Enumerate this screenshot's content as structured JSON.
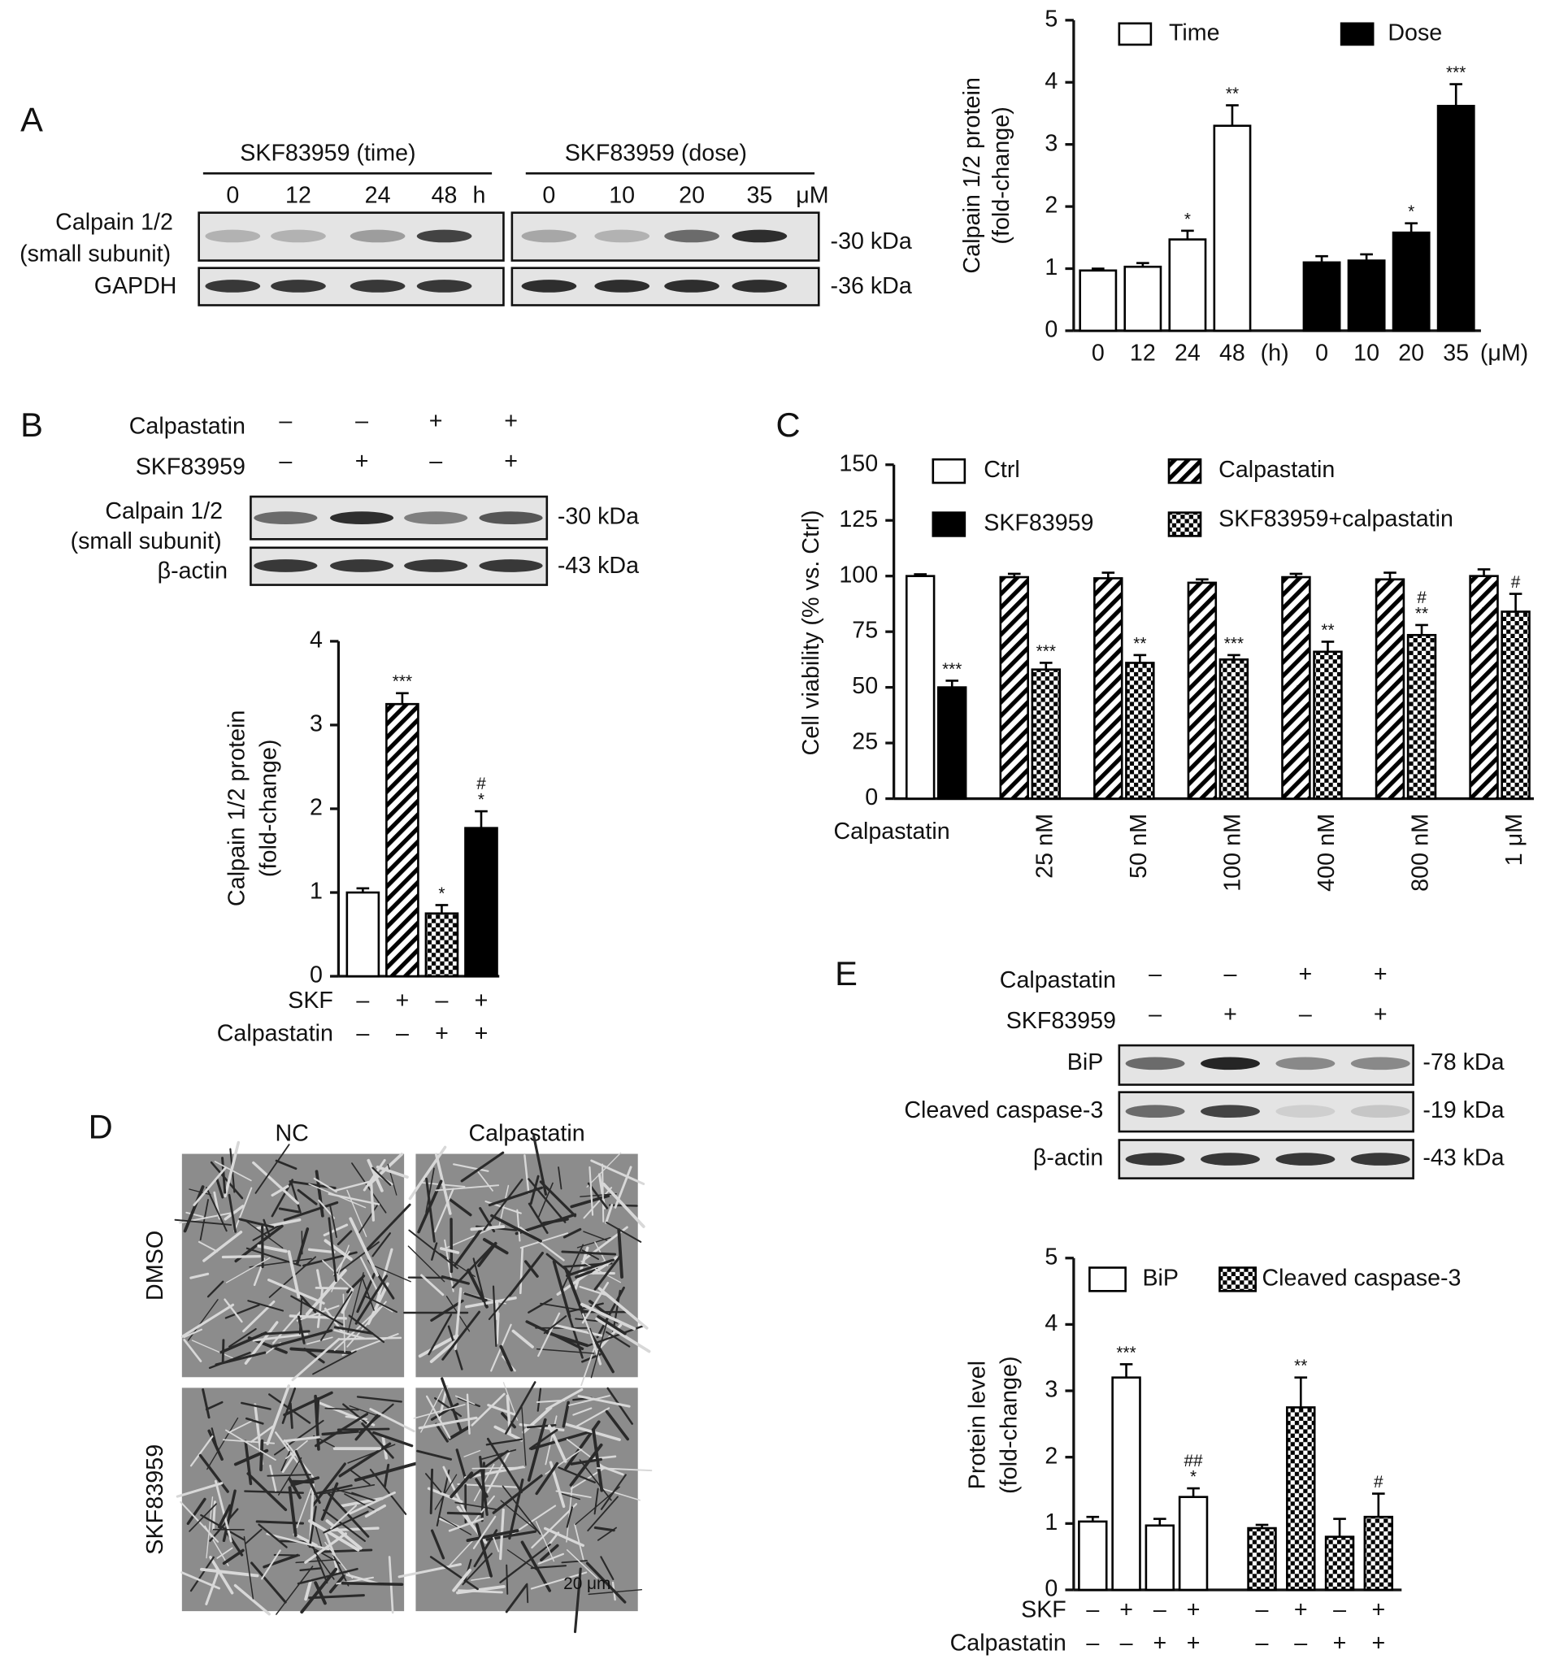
{
  "panels": [
    "A",
    "B",
    "C",
    "D",
    "E"
  ],
  "blots": {
    "A": {
      "headers": [
        "SKF83959 (time)",
        "SKF83959 (dose)"
      ],
      "lanes": [
        "0",
        "12",
        "24",
        "48",
        "h",
        "0",
        "10",
        "20",
        "35",
        "μM"
      ],
      "rows": [
        "Calpain 1/2",
        "(small subunit)",
        "GAPDH"
      ],
      "sizes": [
        "-30 kDa",
        "-36 kDa"
      ]
    },
    "B": {
      "rows": [
        "Calpastatin",
        "SKF83959"
      ],
      "signs": [
        [
          "–",
          "–",
          "+",
          "+"
        ],
        [
          "–",
          "+",
          "–",
          "+"
        ]
      ],
      "bands": [
        "Calpain 1/2",
        "(small subunit)",
        "β-actin"
      ],
      "sizes": [
        "-30 kDa",
        "-43 kDa"
      ]
    },
    "D": {
      "columns": [
        "NC",
        "Calpastatin"
      ],
      "rows": [
        "DMSO",
        "SKF83959"
      ],
      "scale": "20 μm"
    },
    "E": {
      "rows": [
        "Calpastatin",
        "SKF83959"
      ],
      "signs": [
        [
          "–",
          "–",
          "+",
          "+"
        ],
        [
          "–",
          "+",
          "–",
          "+"
        ]
      ],
      "bands": [
        "BiP",
        "Cleaved caspase-3",
        "β-actin"
      ],
      "sizes": [
        "-78 kDa",
        "-19 kDa",
        "-43 kDa"
      ]
    }
  },
  "chart_data": [
    {
      "type": "bar",
      "ylabel": [
        "Calpain 1/2 protein",
        "(fold-change)"
      ],
      "categories": [
        "0",
        "12",
        "24",
        "48",
        "0",
        "10",
        "20",
        "35"
      ],
      "group_units": [
        "(h)",
        "(μM)"
      ],
      "series": [
        {
          "name": "Time",
          "pattern": "open",
          "values": [
            0.97,
            1.03,
            1.47,
            3.3,
            null,
            null,
            null,
            null
          ],
          "errors": [
            0.03,
            0.06,
            0.14,
            0.33,
            null,
            null,
            null,
            null
          ],
          "annotations": [
            null,
            null,
            [
              "*"
            ],
            [
              "**"
            ],
            null,
            null,
            null,
            null
          ]
        },
        {
          "name": "Dose",
          "pattern": "solid",
          "values": [
            null,
            null,
            null,
            null,
            1.1,
            1.13,
            1.58,
            3.62
          ],
          "errors": [
            null,
            null,
            null,
            null,
            0.1,
            0.1,
            0.15,
            0.35
          ],
          "annotations": [
            null,
            null,
            null,
            null,
            null,
            null,
            [
              "*"
            ],
            [
              "***"
            ]
          ]
        }
      ],
      "ylim": [
        0,
        5
      ],
      "yticks": [
        0,
        1,
        2,
        3,
        4,
        5
      ]
    },
    {
      "type": "bar",
      "ylabel": [
        "Calpain 1/2 protein",
        "(fold-change)"
      ],
      "values": [
        1.0,
        3.25,
        0.75,
        1.77
      ],
      "errors": [
        0.05,
        0.13,
        0.1,
        0.2
      ],
      "patterns": [
        "open",
        "hatch",
        "checker",
        "solid"
      ],
      "annotations": [
        null,
        [
          "***"
        ],
        [
          "*"
        ],
        [
          "#",
          "*"
        ]
      ],
      "treatment_rows": [
        {
          "label": "SKF",
          "values": [
            "–",
            "+",
            "–",
            "+"
          ]
        },
        {
          "label": "Calpastatin",
          "values": [
            "–",
            "–",
            "+",
            "+"
          ]
        }
      ],
      "ylim": [
        0,
        4
      ],
      "yticks": [
        0,
        1,
        2,
        3,
        4
      ]
    },
    {
      "type": "bar",
      "ylabel": [
        "Cell viability (% vs. Ctrl)"
      ],
      "xlabel": "Calpastatin",
      "categories": [
        null,
        "25 nM",
        "50 nM",
        "100 nM",
        "400 nM",
        "800 nM",
        "1 μM"
      ],
      "series": [
        {
          "name": "Ctrl",
          "pattern": "open",
          "values": [
            100,
            null,
            null,
            null,
            null,
            null,
            null
          ],
          "errors": [
            0.8,
            null,
            null,
            null,
            null,
            null,
            null
          ],
          "annotations": [
            null,
            null,
            null,
            null,
            null,
            null,
            null
          ]
        },
        {
          "name": "SKF83959",
          "pattern": "solid",
          "values": [
            50,
            null,
            null,
            null,
            null,
            null,
            null
          ],
          "errors": [
            3,
            null,
            null,
            null,
            null,
            null,
            null
          ],
          "annotations": [
            [
              "***"
            ],
            null,
            null,
            null,
            null,
            null,
            null
          ]
        },
        {
          "name": "Calpastatin",
          "pattern": "hatch",
          "values": [
            null,
            99.5,
            99,
            97,
            99.5,
            98.5,
            100
          ],
          "errors": [
            null,
            1.5,
            2.5,
            1.5,
            1.5,
            3,
            3
          ],
          "annotations": [
            null,
            null,
            null,
            null,
            null,
            null,
            null
          ]
        },
        {
          "name": "SKF83959+calpastatin",
          "pattern": "checker",
          "values": [
            null,
            58,
            61,
            62.5,
            66,
            73.5,
            84
          ],
          "errors": [
            null,
            3,
            3.5,
            2,
            4.5,
            4.5,
            8
          ],
          "annotations": [
            null,
            [
              "***"
            ],
            [
              "**"
            ],
            [
              "***"
            ],
            [
              "**"
            ],
            [
              "#",
              "**"
            ],
            [
              "#"
            ]
          ]
        }
      ],
      "ylim": [
        0,
        150
      ],
      "yticks": [
        0,
        25,
        50,
        75,
        100,
        125,
        150
      ]
    },
    {
      "type": "bar",
      "ylabel": [
        "Protein level",
        "(fold-change)"
      ],
      "series": [
        {
          "name": "BiP",
          "pattern": "open",
          "values": [
            1.03,
            3.2,
            0.97,
            1.4
          ],
          "errors": [
            0.07,
            0.2,
            0.1,
            0.13
          ],
          "annotations": [
            null,
            [
              "***"
            ],
            null,
            [
              "##",
              "*"
            ]
          ]
        },
        {
          "name": "Cleaved caspase-3",
          "pattern": "checker",
          "values": [
            0.93,
            2.75,
            0.8,
            1.1
          ],
          "errors": [
            0.05,
            0.45,
            0.27,
            0.35
          ],
          "annotations": [
            null,
            [
              "**"
            ],
            null,
            [
              "#"
            ]
          ]
        }
      ],
      "treatment_rows": [
        {
          "label": "SKF",
          "values": [
            "–",
            "+",
            "–",
            "+",
            "–",
            "+",
            "–",
            "+"
          ]
        },
        {
          "label": "Calpastatin",
          "values": [
            "–",
            "–",
            "+",
            "+",
            "–",
            "–",
            "+",
            "+"
          ]
        }
      ],
      "ylim": [
        0,
        5
      ],
      "yticks": [
        0,
        1,
        2,
        3,
        4,
        5
      ]
    }
  ]
}
